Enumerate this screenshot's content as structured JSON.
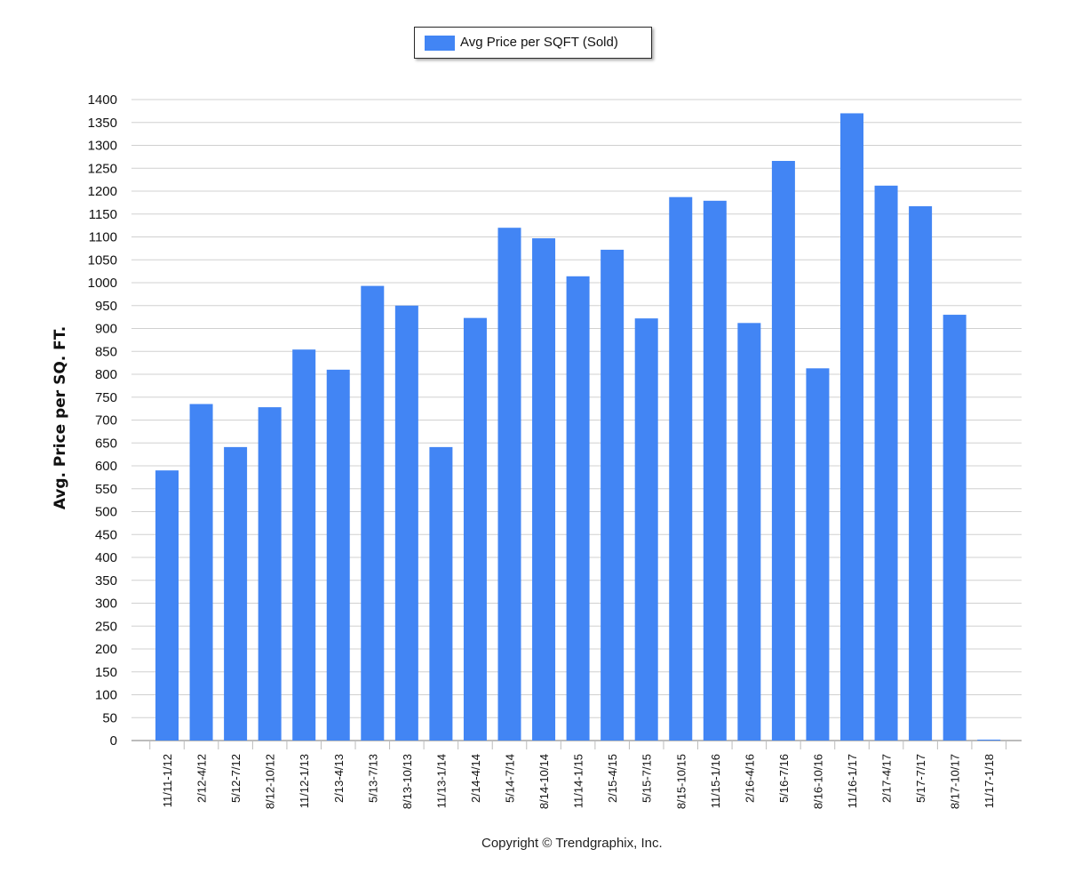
{
  "legend": {
    "label": "Avg Price per SQFT (Sold)"
  },
  "footer": {
    "text": "Copyright © Trendgraphix, Inc."
  },
  "chart_data": {
    "type": "bar",
    "ylabel": "Avg. Price per SQ. FT.",
    "ylim": [
      0,
      1400
    ],
    "ytick_step": 50,
    "grid": true,
    "legend_position": "top-center",
    "series": [
      {
        "name": "Avg Price per SQFT (Sold)",
        "color": "#4285f4",
        "values": [
          590,
          735,
          641,
          728,
          854,
          810,
          993,
          950,
          641,
          923,
          1120,
          1097,
          1014,
          1072,
          922,
          1187,
          1179,
          912,
          1266,
          813,
          1370,
          1212,
          1167,
          930,
          2
        ]
      }
    ],
    "categories": [
      "11/11-1/12",
      "2/12-4/12",
      "5/12-7/12",
      "8/12-10/12",
      "11/12-1/13",
      "2/13-4/13",
      "5/13-7/13",
      "8/13-10/13",
      "11/13-1/14",
      "2/14-4/14",
      "5/14-7/14",
      "8/14-10/14",
      "11/14-1/15",
      "2/15-4/15",
      "5/15-7/15",
      "8/15-10/15",
      "11/15-1/16",
      "2/16-4/16",
      "5/16-7/16",
      "8/16-10/16",
      "11/16-1/17",
      "2/17-4/17",
      "5/17-7/17",
      "8/17-10/17",
      "11/17-1/18"
    ]
  }
}
